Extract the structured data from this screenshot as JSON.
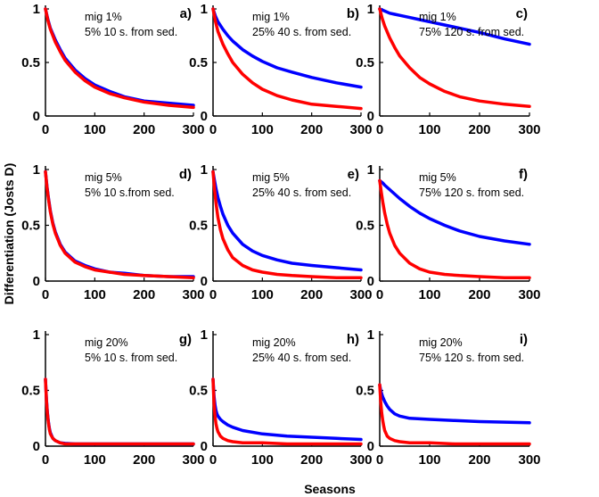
{
  "figure": {
    "xlabel": "Seasons",
    "ylabel": "Differentiation (Josts D)"
  },
  "chart_data": [
    {
      "type": "line",
      "letter": "a)",
      "ann1": "mig 1%",
      "ann2": "5% 10 s. from sed.",
      "xlim": [
        0,
        300
      ],
      "ylim": [
        0,
        1
      ],
      "xticks": [
        "0",
        "100",
        "200",
        "300"
      ],
      "yticks": [
        "0",
        "0.5",
        "1"
      ],
      "x": [
        0,
        5,
        10,
        20,
        30,
        40,
        60,
        80,
        100,
        130,
        160,
        200,
        250,
        300
      ],
      "series": [
        {
          "color": "#0000ff",
          "values": [
            1,
            0.9,
            0.82,
            0.71,
            0.62,
            0.54,
            0.43,
            0.35,
            0.29,
            0.23,
            0.18,
            0.14,
            0.12,
            0.1
          ]
        },
        {
          "color": "#ff0000",
          "values": [
            1,
            0.89,
            0.81,
            0.69,
            0.6,
            0.52,
            0.41,
            0.33,
            0.27,
            0.21,
            0.17,
            0.13,
            0.1,
            0.08
          ]
        }
      ]
    },
    {
      "type": "line",
      "letter": "b)",
      "ann1": "mig 1%",
      "ann2": "25% 40 s. from sed.",
      "xlim": [
        0,
        300
      ],
      "ylim": [
        0,
        1
      ],
      "xticks": [
        "0",
        "100",
        "200",
        "300"
      ],
      "yticks": [
        "0",
        "0.5",
        "1"
      ],
      "x": [
        0,
        5,
        10,
        20,
        30,
        40,
        60,
        80,
        100,
        130,
        160,
        200,
        250,
        300
      ],
      "series": [
        {
          "color": "#0000ff",
          "values": [
            1,
            0.93,
            0.88,
            0.81,
            0.75,
            0.7,
            0.62,
            0.56,
            0.51,
            0.45,
            0.41,
            0.36,
            0.31,
            0.27
          ]
        },
        {
          "color": "#ff0000",
          "values": [
            1,
            0.88,
            0.79,
            0.67,
            0.58,
            0.5,
            0.39,
            0.31,
            0.25,
            0.19,
            0.15,
            0.11,
            0.09,
            0.07
          ]
        }
      ]
    },
    {
      "type": "line",
      "letter": "c)",
      "ann1": "mig 1%",
      "ann2": "75% 120 s. from sed.",
      "xlim": [
        0,
        300
      ],
      "ylim": [
        0,
        1
      ],
      "xticks": [
        "0",
        "100",
        "200",
        "300"
      ],
      "yticks": [
        "0",
        "0.5",
        "1"
      ],
      "x": [
        0,
        5,
        10,
        20,
        30,
        40,
        60,
        80,
        100,
        130,
        160,
        200,
        250,
        300
      ],
      "series": [
        {
          "color": "#0000ff",
          "values": [
            1,
            0.99,
            0.98,
            0.96,
            0.95,
            0.94,
            0.92,
            0.9,
            0.88,
            0.85,
            0.82,
            0.78,
            0.72,
            0.67
          ]
        },
        {
          "color": "#ff0000",
          "values": [
            1,
            0.91,
            0.84,
            0.73,
            0.64,
            0.56,
            0.45,
            0.36,
            0.3,
            0.23,
            0.18,
            0.14,
            0.11,
            0.09
          ]
        }
      ]
    },
    {
      "type": "line",
      "letter": "d)",
      "ann1": "mig 5%",
      "ann2": "5% 10 s.from sed.",
      "xlim": [
        0,
        300
      ],
      "ylim": [
        0,
        1
      ],
      "xticks": [
        "0",
        "100",
        "200",
        "300"
      ],
      "yticks": [
        "0",
        "0.5",
        "1"
      ],
      "x": [
        0,
        3,
        6,
        10,
        15,
        20,
        30,
        40,
        60,
        80,
        100,
        130,
        160,
        200,
        250,
        300
      ],
      "series": [
        {
          "color": "#0000ff",
          "values": [
            0.98,
            0.85,
            0.75,
            0.63,
            0.52,
            0.44,
            0.33,
            0.26,
            0.18,
            0.14,
            0.11,
            0.08,
            0.07,
            0.05,
            0.04,
            0.04
          ]
        },
        {
          "color": "#ff0000",
          "values": [
            0.98,
            0.84,
            0.74,
            0.62,
            0.51,
            0.43,
            0.32,
            0.25,
            0.17,
            0.13,
            0.1,
            0.08,
            0.06,
            0.05,
            0.04,
            0.03
          ]
        }
      ]
    },
    {
      "type": "line",
      "letter": "e)",
      "ann1": "mig 5%",
      "ann2": "25% 40 s. from sed.",
      "xlim": [
        0,
        300
      ],
      "ylim": [
        0,
        1
      ],
      "xticks": [
        "0",
        "100",
        "200",
        "300"
      ],
      "yticks": [
        "0",
        "0.5",
        "1"
      ],
      "x": [
        0,
        3,
        6,
        10,
        15,
        20,
        30,
        40,
        60,
        80,
        100,
        130,
        160,
        200,
        250,
        300
      ],
      "series": [
        {
          "color": "#0000ff",
          "values": [
            0.98,
            0.9,
            0.83,
            0.75,
            0.67,
            0.6,
            0.5,
            0.43,
            0.33,
            0.27,
            0.23,
            0.19,
            0.16,
            0.14,
            0.12,
            0.1
          ]
        },
        {
          "color": "#ff0000",
          "values": [
            0.98,
            0.82,
            0.7,
            0.57,
            0.46,
            0.38,
            0.28,
            0.21,
            0.14,
            0.1,
            0.08,
            0.06,
            0.05,
            0.04,
            0.03,
            0.03
          ]
        }
      ]
    },
    {
      "type": "line",
      "letter": "f)",
      "ann1": "mig 5%",
      "ann2": "75% 120 s. from sed.",
      "xlim": [
        0,
        300
      ],
      "ylim": [
        0,
        1
      ],
      "xticks": [
        "0",
        "100",
        "200",
        "300"
      ],
      "yticks": [
        "0",
        "0.5",
        "1"
      ],
      "x": [
        0,
        3,
        6,
        10,
        15,
        20,
        30,
        40,
        60,
        80,
        100,
        130,
        160,
        200,
        250,
        300
      ],
      "series": [
        {
          "color": "#0000ff",
          "values": [
            0.9,
            0.89,
            0.88,
            0.86,
            0.84,
            0.82,
            0.78,
            0.74,
            0.67,
            0.61,
            0.56,
            0.5,
            0.45,
            0.4,
            0.36,
            0.33
          ]
        },
        {
          "color": "#ff0000",
          "values": [
            0.9,
            0.8,
            0.71,
            0.61,
            0.51,
            0.43,
            0.32,
            0.25,
            0.16,
            0.11,
            0.08,
            0.06,
            0.05,
            0.04,
            0.03,
            0.03
          ]
        }
      ]
    },
    {
      "type": "line",
      "letter": "g)",
      "ann1": "mig 20%",
      "ann2": "5% 10 s. from sed.",
      "xlim": [
        0,
        300
      ],
      "ylim": [
        0,
        1
      ],
      "xticks": [
        "0",
        "100",
        "200",
        "300"
      ],
      "yticks": [
        "0",
        "0.5",
        "1"
      ],
      "x": [
        0,
        2,
        4,
        6,
        8,
        10,
        15,
        20,
        30,
        40,
        60,
        100,
        150,
        200,
        250,
        300
      ],
      "series": [
        {
          "color": "#0000ff",
          "values": [
            0.6,
            0.42,
            0.3,
            0.22,
            0.16,
            0.12,
            0.07,
            0.05,
            0.03,
            0.025,
            0.02,
            0.02,
            0.02,
            0.02,
            0.02,
            0.02
          ]
        },
        {
          "color": "#ff0000",
          "values": [
            0.6,
            0.41,
            0.29,
            0.21,
            0.15,
            0.11,
            0.07,
            0.05,
            0.03,
            0.02,
            0.02,
            0.02,
            0.02,
            0.02,
            0.02,
            0.02
          ]
        }
      ]
    },
    {
      "type": "line",
      "letter": "h)",
      "ann1": "mig 20%",
      "ann2": "25% 40 s. from sed.",
      "xlim": [
        0,
        300
      ],
      "ylim": [
        0,
        1
      ],
      "xticks": [
        "0",
        "100",
        "200",
        "300"
      ],
      "yticks": [
        "0",
        "0.5",
        "1"
      ],
      "x": [
        0,
        2,
        4,
        6,
        8,
        10,
        15,
        20,
        30,
        40,
        60,
        100,
        150,
        200,
        250,
        300
      ],
      "series": [
        {
          "color": "#0000ff",
          "values": [
            0.6,
            0.45,
            0.37,
            0.32,
            0.29,
            0.27,
            0.24,
            0.22,
            0.19,
            0.17,
            0.14,
            0.11,
            0.09,
            0.08,
            0.07,
            0.06
          ]
        },
        {
          "color": "#ff0000",
          "values": [
            0.6,
            0.38,
            0.27,
            0.2,
            0.16,
            0.13,
            0.09,
            0.07,
            0.05,
            0.04,
            0.03,
            0.03,
            0.02,
            0.02,
            0.02,
            0.02
          ]
        }
      ]
    },
    {
      "type": "line",
      "letter": "i)",
      "ann1": "mig 20%",
      "ann2": "75% 120 s. from sed.",
      "xlim": [
        0,
        300
      ],
      "ylim": [
        0,
        1
      ],
      "xticks": [
        "0",
        "100",
        "200",
        "300"
      ],
      "yticks": [
        "0",
        "0.5",
        "1"
      ],
      "x": [
        0,
        2,
        4,
        6,
        8,
        10,
        15,
        20,
        30,
        40,
        60,
        100,
        150,
        200,
        250,
        300
      ],
      "series": [
        {
          "color": "#0000ff",
          "values": [
            0.55,
            0.5,
            0.47,
            0.44,
            0.42,
            0.4,
            0.36,
            0.33,
            0.29,
            0.27,
            0.25,
            0.24,
            0.23,
            0.22,
            0.215,
            0.21
          ]
        },
        {
          "color": "#ff0000",
          "values": [
            0.55,
            0.4,
            0.3,
            0.23,
            0.18,
            0.14,
            0.09,
            0.07,
            0.05,
            0.04,
            0.03,
            0.03,
            0.02,
            0.02,
            0.02,
            0.02
          ]
        }
      ]
    }
  ]
}
